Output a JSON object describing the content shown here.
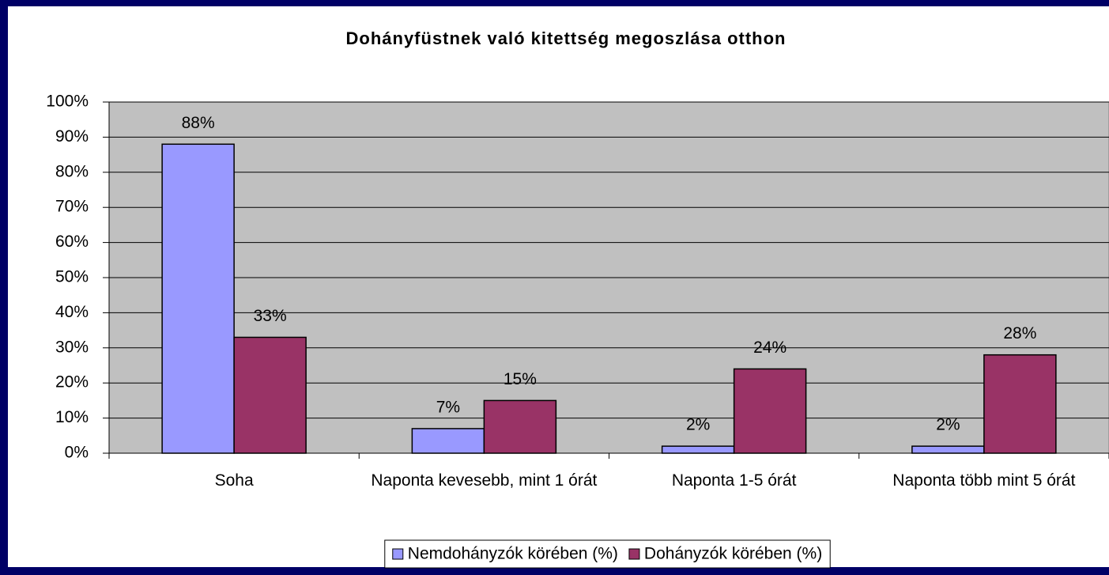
{
  "chart_data": {
    "type": "bar",
    "title": "Dohányfüstnek való kitettség megoszlása otthon",
    "categories": [
      "Soha",
      "Naponta kevesebb, mint 1 órát",
      "Naponta 1-5 órát",
      "Naponta több mint 5 órát"
    ],
    "series": [
      {
        "name": "Nemdohányzók körében (%)",
        "color": "#9999ff",
        "values": [
          88,
          7,
          2,
          2
        ],
        "value_labels": [
          "88%",
          "7%",
          "2%",
          "2%"
        ]
      },
      {
        "name": "Dohányzók körében (%)",
        "color": "#993366",
        "values": [
          33,
          15,
          24,
          28
        ],
        "value_labels": [
          "33%",
          "15%",
          "24%",
          "28%"
        ]
      }
    ],
    "ylim": [
      0,
      100
    ],
    "yticks": [
      {
        "value": 0,
        "label": "0%"
      },
      {
        "value": 10,
        "label": "10%"
      },
      {
        "value": 20,
        "label": "20%"
      },
      {
        "value": 30,
        "label": "30%"
      },
      {
        "value": 40,
        "label": "40%"
      },
      {
        "value": 50,
        "label": "50%"
      },
      {
        "value": 60,
        "label": "60%"
      },
      {
        "value": 70,
        "label": "70%"
      },
      {
        "value": 80,
        "label": "80%"
      },
      {
        "value": 90,
        "label": "90%"
      },
      {
        "value": 100,
        "label": "100%"
      }
    ],
    "grid": true,
    "legend": "bottom",
    "plot_color": "#c0c0c0"
  }
}
